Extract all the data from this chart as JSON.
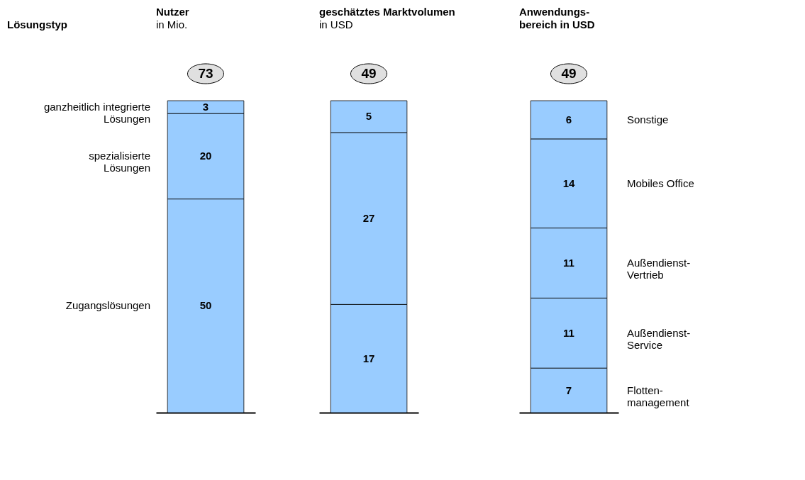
{
  "chart_data": [
    {
      "type": "bar",
      "stacked": true,
      "title": "Nutzer",
      "subtitle": "in Mio.",
      "annotations": [
        "Lösungstyp"
      ],
      "categories": [
        null
      ],
      "ylim": [
        0,
        73
      ],
      "tick_labels": false,
      "data_labels": true,
      "totals": [
        "73"
      ],
      "series": [
        {
          "name": "Zugangslösungen",
          "color": "#99ccff",
          "values": [
            50
          ]
        },
        {
          "name": "spezialisierte\nLösungen",
          "color": "#99ccff",
          "values": [
            20
          ]
        },
        {
          "name": "ganzheitlich integrierte\nLösungen",
          "color": "#99ccff",
          "values": [
            3
          ]
        }
      ]
    },
    {
      "type": "bar",
      "stacked": true,
      "title": "geschätztes Marktvolumen",
      "subtitle": "in USD",
      "categories": [
        null
      ],
      "ylim": [
        0,
        49
      ],
      "tick_labels": false,
      "data_labels": true,
      "totals": [
        "49"
      ],
      "series": [
        {
          "color": "#99ccff",
          "values": [
            17
          ]
        },
        {
          "color": "#99ccff",
          "values": [
            27
          ]
        },
        {
          "color": "#99ccff",
          "values": [
            5
          ]
        }
      ]
    },
    {
      "type": "bar",
      "stacked": true,
      "title": "Anwendungs-\nbereich in USD",
      "categories": [
        null
      ],
      "ylim": [
        0,
        49
      ],
      "tick_labels": false,
      "data_labels": true,
      "totals": [
        "49"
      ],
      "series": [
        {
          "name": "Flotten-\nmanagement",
          "color": "#99ccff",
          "values": [
            7
          ]
        },
        {
          "name": "Außendienst-\nService",
          "color": "#99ccff",
          "values": [
            11
          ]
        },
        {
          "name": "Außendienst-\nVertrieb",
          "color": "#99ccff",
          "values": [
            11
          ]
        },
        {
          "name": "Mobiles Office",
          "color": "#99ccff",
          "values": [
            14
          ]
        },
        {
          "name": "Sonstige",
          "color": "#99ccff",
          "values": [
            6
          ]
        }
      ]
    }
  ]
}
